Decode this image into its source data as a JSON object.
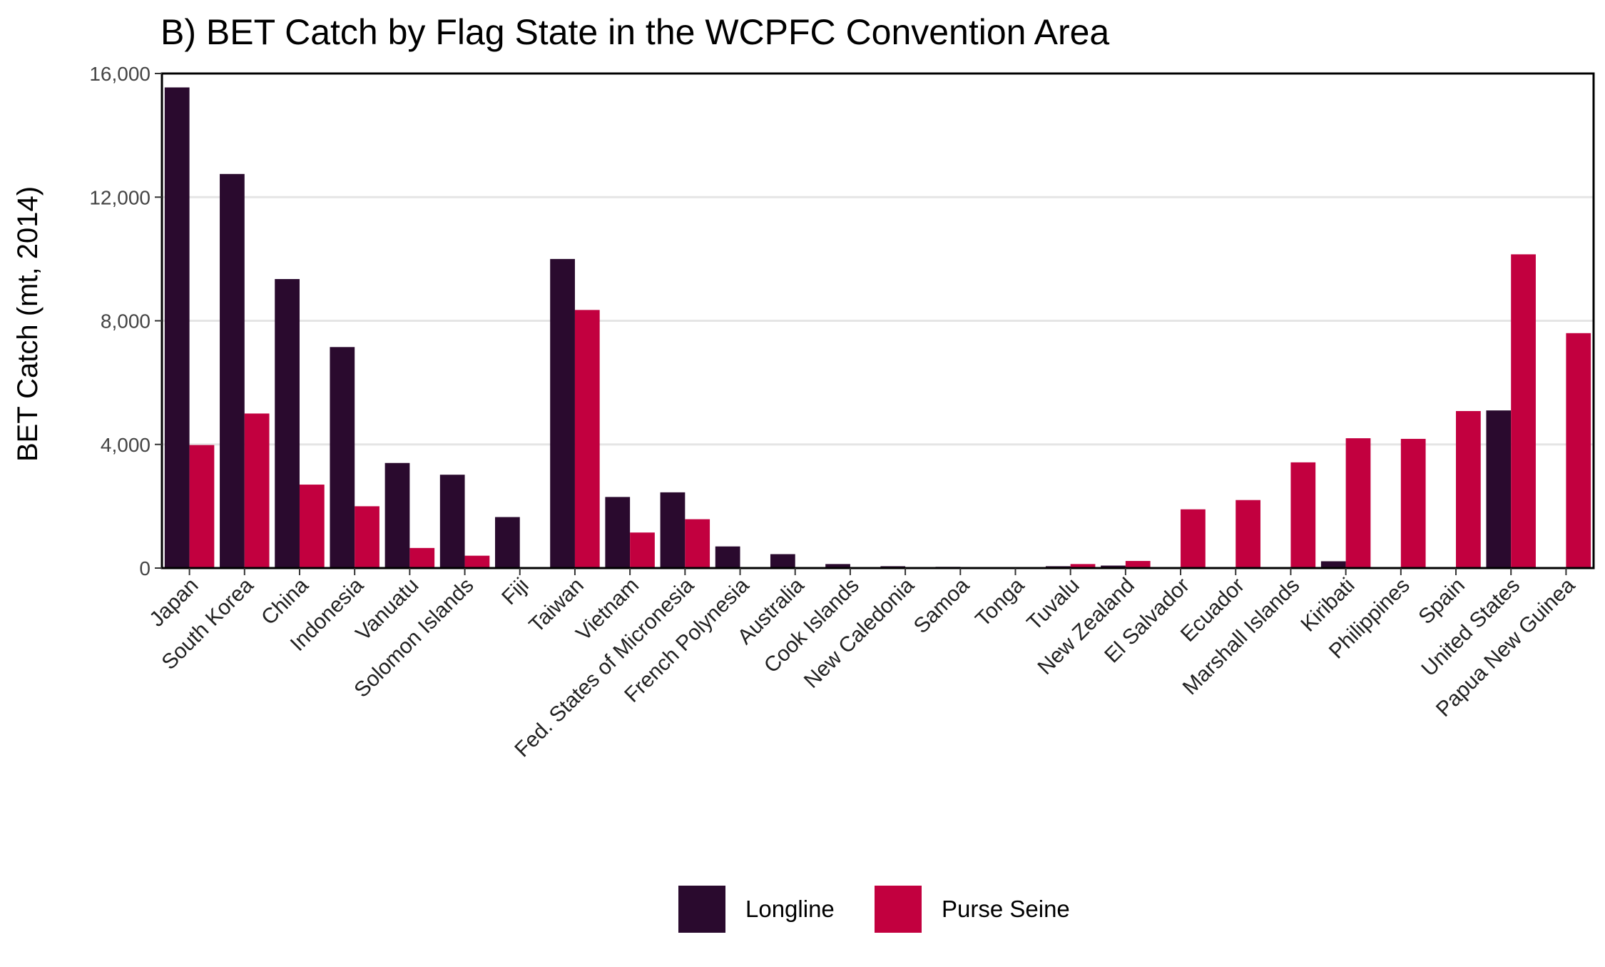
{
  "chart_data": {
    "type": "bar",
    "title": "B) BET Catch by Flag State in the WCPFC Convention Area",
    "xlabel": "",
    "ylabel": "BET Catch (mt, 2014)",
    "ylim": [
      0,
      16000
    ],
    "y_ticks": [
      0,
      4000,
      8000,
      12000,
      16000
    ],
    "y_tick_labels": [
      "0",
      "4,000",
      "8,000",
      "12,000",
      "16,000"
    ],
    "grid": "horizontal",
    "legend_position": "bottom",
    "categories": [
      "Japan",
      "South Korea",
      "China",
      "Indonesia",
      "Vanuatu",
      "Solomon Islands",
      "Fiji",
      "Taiwan",
      "Vietnam",
      "Fed. States of Micronesia",
      "French Polynesia",
      "Australia",
      "Cook Islands",
      "New Caledonia",
      "Samoa",
      "Tonga",
      "Tuvalu",
      "New Zealand",
      "El Salvador",
      "Ecuador",
      "Marshall Islands",
      "Kiribati",
      "Philippines",
      "Spain",
      "United States",
      "Papua New Guinea"
    ],
    "series": [
      {
        "name": "Longline",
        "color": "#2a0a2e",
        "values": [
          15550,
          12750,
          9350,
          7150,
          3400,
          3020,
          1650,
          10000,
          2300,
          2450,
          700,
          450,
          130,
          60,
          40,
          30,
          60,
          80,
          20,
          20,
          30,
          220,
          20,
          30,
          5100,
          30
        ]
      },
      {
        "name": "Purse Seine",
        "color": "#c2003f",
        "values": [
          3980,
          5000,
          2700,
          2000,
          650,
          400,
          0,
          8350,
          1150,
          1580,
          0,
          0,
          0,
          0,
          0,
          0,
          130,
          230,
          1900,
          2200,
          3420,
          4200,
          4180,
          5080,
          10150,
          7600
        ]
      }
    ]
  }
}
